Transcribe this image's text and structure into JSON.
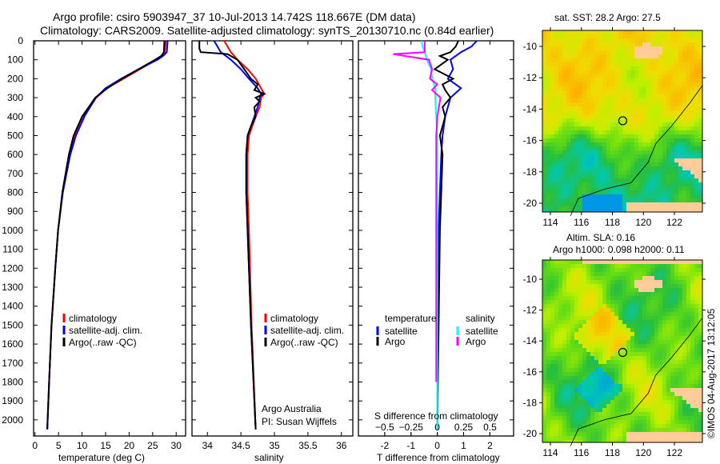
{
  "title": {
    "line1": "Argo profile: csiro 5903947_37 10-Jul-2013 14.742S 118.667E (DM data)",
    "line2": "Climatology: CARS2009. Satellite-adjusted climatology: synTS_20130710.nc (0.84d earlier)"
  },
  "colors": {
    "climatology": "#ff0000",
    "satellite": "#0000ff",
    "argo": "#000000",
    "sal_satellite": "#00ffff",
    "sal_argo": "#ff00ff",
    "land": "#ffcc99"
  },
  "chart_data": [
    {
      "type": "line",
      "id": "temperature",
      "xlabel": "temperature (deg C)",
      "ylabel": "",
      "xlim": [
        -0.3,
        32
      ],
      "ylim": [
        2085,
        0
      ],
      "xticks": [
        0,
        5,
        10,
        15,
        20,
        25,
        30
      ],
      "yticks": [
        0,
        100,
        200,
        300,
        400,
        500,
        600,
        700,
        800,
        900,
        1000,
        1100,
        1200,
        1300,
        1400,
        1500,
        1600,
        1700,
        1800,
        1900,
        2000
      ],
      "legend": {
        "position": "lower-middle",
        "entries": [
          "climatology",
          "satellite-adj. clim.",
          "Argo(..raw -QC)"
        ]
      },
      "series": [
        {
          "name": "climatology",
          "color": "#ff0000",
          "depth": [
            0,
            60,
            80,
            100,
            150,
            200,
            250,
            300,
            400,
            500,
            600,
            800,
            1000,
            1200,
            1500,
            1800,
            2050
          ],
          "value": [
            27.8,
            27.6,
            27.0,
            25.8,
            22.3,
            18.8,
            15.3,
            13.0,
            10.4,
            8.5,
            7.4,
            5.9,
            4.9,
            4.3,
            3.5,
            3.0,
            2.6
          ]
        },
        {
          "name": "satellite-adj. clim.",
          "color": "#0000ff",
          "depth": [
            0,
            60,
            80,
            100,
            150,
            200,
            250,
            300,
            400,
            500,
            600,
            800,
            1000,
            1200,
            1500,
            1800,
            2050
          ],
          "value": [
            28.2,
            28.0,
            27.2,
            26.0,
            22.0,
            18.3,
            15.0,
            12.9,
            10.5,
            8.7,
            7.5,
            5.9,
            4.9,
            4.3,
            3.5,
            3.0,
            2.6
          ]
        },
        {
          "name": "Argo(..raw -QC)",
          "color": "#000000",
          "depth": [
            0,
            60,
            80,
            100,
            150,
            200,
            250,
            300,
            400,
            500,
            600,
            800,
            1000,
            1200,
            1500,
            1800,
            2050
          ],
          "value": [
            27.5,
            27.4,
            26.8,
            25.5,
            22.0,
            18.5,
            15.4,
            12.8,
            10.0,
            8.2,
            7.2,
            5.8,
            4.9,
            4.3,
            3.5,
            3.0,
            2.6
          ]
        }
      ]
    },
    {
      "type": "line",
      "id": "salinity",
      "xlabel": "salinity",
      "xlim": [
        33.77,
        36.17
      ],
      "ylim": [
        2085,
        0
      ],
      "xticks": [
        34,
        34.5,
        35,
        35.5,
        36
      ],
      "legend": {
        "position": "lower-middle",
        "entries": [
          "climatology",
          "satellite-adj. clim.",
          "Argo(..raw -QC)"
        ]
      },
      "annotation": [
        "Argo Australia",
        "PI: Susan Wijffels"
      ],
      "series": [
        {
          "name": "climatology",
          "color": "#ff0000",
          "depth": [
            0,
            30,
            60,
            100,
            150,
            200,
            250,
            280,
            300,
            350,
            400,
            500,
            600,
            800,
            1000,
            1500,
            2050
          ],
          "value": [
            34.25,
            34.3,
            34.35,
            34.45,
            34.6,
            34.72,
            34.8,
            34.85,
            34.8,
            34.78,
            34.72,
            34.62,
            34.6,
            34.6,
            34.62,
            34.66,
            34.72
          ]
        },
        {
          "name": "satellite-adj. clim.",
          "color": "#0000ff",
          "depth": [
            0,
            30,
            60,
            100,
            150,
            200,
            250,
            280,
            300,
            350,
            400,
            500,
            600,
            800,
            1000,
            1500,
            2050
          ],
          "value": [
            34.1,
            34.15,
            34.2,
            34.35,
            34.5,
            34.62,
            34.75,
            34.8,
            34.78,
            34.75,
            34.7,
            34.6,
            34.58,
            34.58,
            34.6,
            34.65,
            34.72
          ]
        },
        {
          "name": "Argo(..raw -QC)",
          "color": "#000000",
          "depth": [
            0,
            40,
            60,
            70,
            100,
            150,
            200,
            230,
            260,
            280,
            300,
            320,
            350,
            400,
            450,
            500,
            600,
            800,
            1000,
            1500,
            2050
          ],
          "value": [
            33.88,
            33.88,
            33.9,
            34.3,
            34.45,
            34.55,
            34.65,
            34.75,
            34.7,
            34.85,
            34.72,
            34.78,
            34.7,
            34.72,
            34.65,
            34.6,
            34.58,
            34.58,
            34.6,
            34.65,
            34.72
          ]
        }
      ]
    },
    {
      "type": "line",
      "id": "difference",
      "xlabel": "T difference from climatology",
      "x2label": "S difference from climatology",
      "xlim": [
        -3.0,
        2.9
      ],
      "x2lim": [
        -0.75,
        0.725
      ],
      "ylim": [
        2085,
        0
      ],
      "xticks": [
        -2,
        -1,
        0,
        1,
        2
      ],
      "x2ticks": [
        -0.5,
        -0.25,
        0,
        0.25,
        0.5
      ],
      "legend": {
        "position": "lower-middle",
        "temperature_title": "temperature",
        "salinity_title": "salinity",
        "entries": [
          "satellite",
          "Argo",
          "satellite",
          "Argo"
        ]
      },
      "series": [
        {
          "name": "T satellite",
          "axis": "T",
          "color": "#0000ff",
          "depth": [
            0,
            30,
            60,
            100,
            150,
            200,
            250,
            300,
            400,
            500,
            600,
            800,
            1000,
            1500,
            2050
          ],
          "value": [
            1.5,
            1.3,
            0.9,
            0.5,
            0.6,
            0.4,
            0.9,
            0.5,
            0.3,
            0.2,
            0.15,
            0.1,
            0.05,
            0.02,
            0.0
          ]
        },
        {
          "name": "T Argo",
          "axis": "T",
          "color": "#000000",
          "depth": [
            0,
            30,
            60,
            80,
            100,
            150,
            200,
            230,
            260,
            300,
            350,
            400,
            500,
            600,
            800,
            1000,
            1500,
            2050
          ],
          "value": [
            0.8,
            0.7,
            0.5,
            0.1,
            0.4,
            -0.1,
            0.6,
            0.2,
            0.3,
            0.5,
            0.2,
            0.3,
            0.1,
            0.2,
            0.15,
            0.1,
            0.05,
            0.0
          ]
        },
        {
          "name": "S satellite",
          "axis": "S",
          "color": "#00ffff",
          "depth": [
            0,
            30,
            60,
            100,
            150,
            200,
            250,
            300,
            400,
            500,
            800,
            1000,
            1500,
            2050
          ],
          "value": [
            -0.15,
            -0.14,
            -0.12,
            -0.1,
            -0.06,
            -0.05,
            -0.02,
            -0.02,
            -0.01,
            0.0,
            0.0,
            0.0,
            0.0,
            0.0
          ]
        },
        {
          "name": "S Argo",
          "axis": "S",
          "color": "#ff00ff",
          "depth": [
            0,
            60,
            70,
            100,
            150,
            200,
            230,
            260,
            300,
            400,
            500,
            800,
            1000,
            1500,
            1800
          ],
          "value": [
            -0.12,
            -0.12,
            -0.42,
            -0.08,
            -0.05,
            -0.07,
            0.0,
            -0.05,
            0.03,
            0.0,
            -0.01,
            -0.01,
            -0.01,
            -0.01,
            -0.01
          ]
        }
      ]
    }
  ],
  "maps": [
    {
      "title": "sat. SST: 28.2 Argo: 27.5",
      "title2": "",
      "lon_ticks": [
        114,
        116,
        118,
        120,
        122
      ],
      "lat_ticks": [
        -10,
        -12,
        -14,
        -16,
        -18,
        -20
      ],
      "float_lon": 118.667,
      "float_lat": -14.742
    },
    {
      "title": "Altim. SLA: 0.16",
      "title2": "Argo h1000: 0.098 h2000: 0.11",
      "lon_ticks": [
        114,
        116,
        118,
        120,
        122
      ],
      "lat_ticks": [
        -10,
        -12,
        -14,
        -16,
        -18,
        -20
      ],
      "float_lon": 118.667,
      "float_lat": -14.742
    }
  ],
  "credit": "©IMOS 04-Aug-2017 13:12:05"
}
